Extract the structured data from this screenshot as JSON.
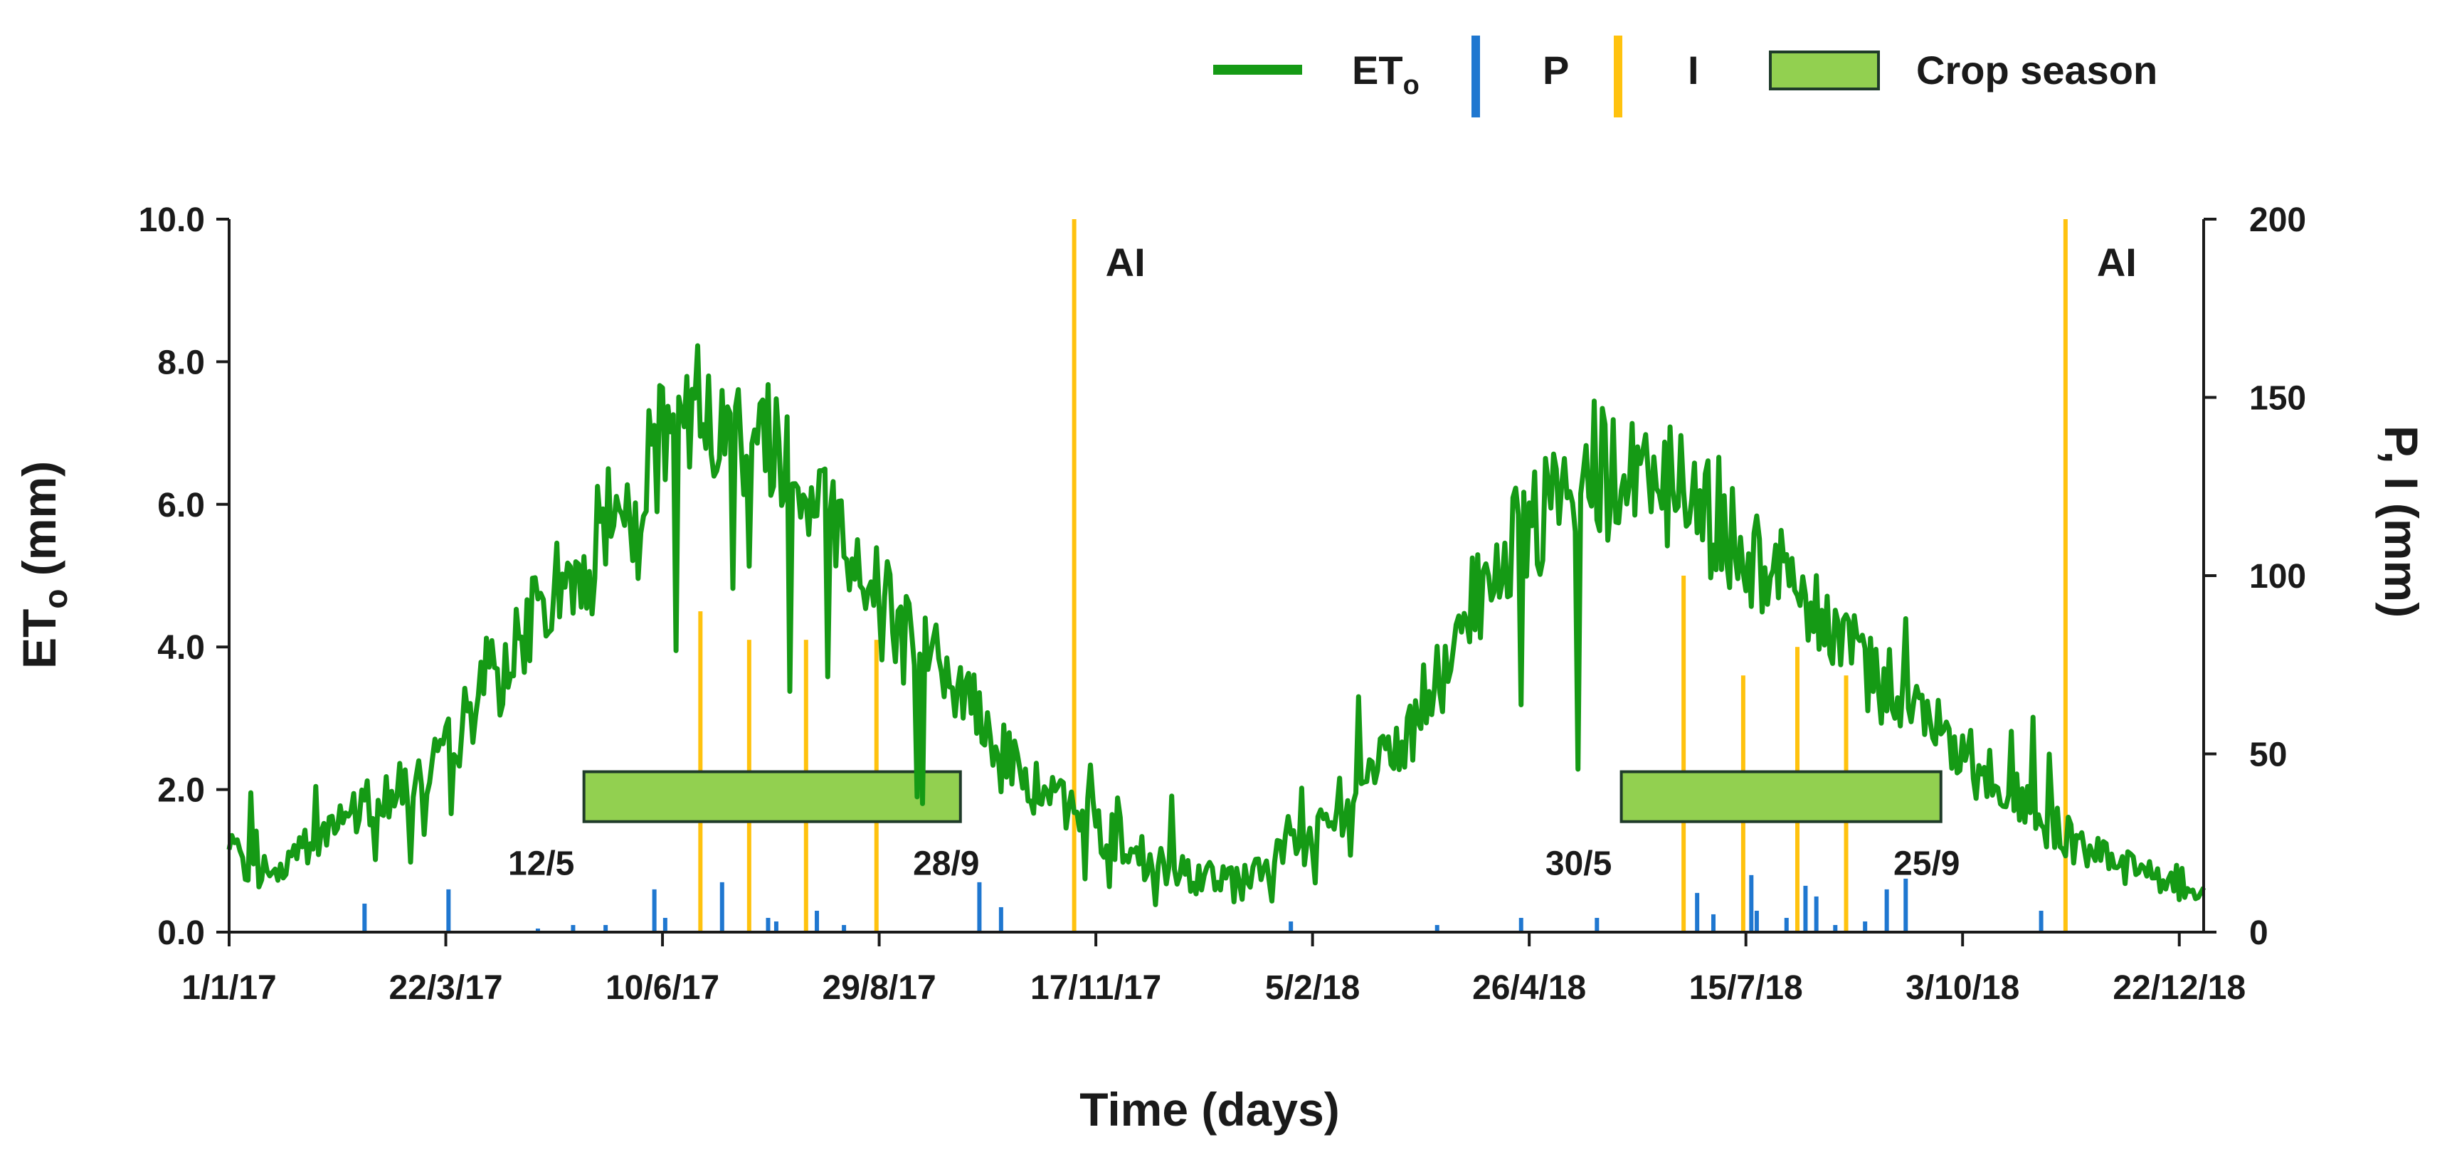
{
  "chart_data": {
    "type": "line",
    "x_axis": {
      "title": "Time (days)",
      "range": [
        "2017-01-01",
        "2018-12-31"
      ],
      "tick_labels": [
        "1/1/17",
        "22/3/17",
        "10/6/17",
        "29/8/17",
        "17/11/17",
        "5/2/18",
        "26/4/18",
        "15/7/18",
        "3/10/18",
        "22/12/18"
      ],
      "tick_dates": [
        "2017-01-01",
        "2017-03-22",
        "2017-06-10",
        "2017-08-29",
        "2017-11-17",
        "2018-02-05",
        "2018-04-26",
        "2018-07-15",
        "2018-10-03",
        "2018-12-22"
      ]
    },
    "y_left": {
      "title": "ET",
      "title_subscript": "o",
      "title_suffix": " (mm)",
      "range": [
        0,
        10
      ],
      "tick_labels": [
        "0.0",
        "2.0",
        "4.0",
        "6.0",
        "8.0",
        "10.0"
      ]
    },
    "y_right": {
      "title": "P, I (mm)",
      "range": [
        0,
        200
      ],
      "tick_labels": [
        "0",
        "50",
        "100",
        "150",
        "200"
      ]
    },
    "legend": {
      "position": "top-right",
      "items": [
        {
          "label": "ET",
          "subscript": "o",
          "kind": "line",
          "color": "#159a15"
        },
        {
          "label": "P",
          "kind": "bar",
          "color": "#1f77d0"
        },
        {
          "label": "I",
          "kind": "bar",
          "color": "#ffc20e"
        },
        {
          "label": "Crop season",
          "kind": "box",
          "color": "#92d050"
        }
      ]
    },
    "series": [
      {
        "name": "ET",
        "axis": "left",
        "color": "#159a15",
        "points": [
          [
            "2017-01-01",
            1.1
          ],
          [
            "2017-01-11",
            0.8
          ],
          [
            "2017-01-21",
            1.0
          ],
          [
            "2017-02-01",
            1.3
          ],
          [
            "2017-02-11",
            1.5
          ],
          [
            "2017-02-21",
            1.8
          ],
          [
            "2017-03-01",
            2.0
          ],
          [
            "2017-03-11",
            2.2
          ],
          [
            "2017-03-22",
            2.5
          ],
          [
            "2017-04-01",
            3.2
          ],
          [
            "2017-04-11",
            3.6
          ],
          [
            "2017-04-21",
            4.2
          ],
          [
            "2017-05-01",
            4.8
          ],
          [
            "2017-05-11",
            5.1
          ],
          [
            "2017-05-21",
            5.8
          ],
          [
            "2017-06-01",
            6.3
          ],
          [
            "2017-06-10",
            6.9
          ],
          [
            "2017-06-21",
            7.2
          ],
          [
            "2017-07-01",
            7.0
          ],
          [
            "2017-07-11",
            7.1
          ],
          [
            "2017-07-21",
            7.0
          ],
          [
            "2017-08-01",
            6.3
          ],
          [
            "2017-08-11",
            5.7
          ],
          [
            "2017-08-21",
            5.2
          ],
          [
            "2017-09-01",
            4.6
          ],
          [
            "2017-09-11",
            4.0
          ],
          [
            "2017-09-21",
            3.7
          ],
          [
            "2017-10-01",
            3.2
          ],
          [
            "2017-10-11",
            2.7
          ],
          [
            "2017-10-21",
            2.2
          ],
          [
            "2017-11-01",
            1.9
          ],
          [
            "2017-11-11",
            1.6
          ],
          [
            "2017-11-21",
            1.4
          ],
          [
            "2017-12-01",
            1.2
          ],
          [
            "2017-12-11",
            0.9
          ],
          [
            "2017-12-21",
            0.8
          ],
          [
            "2018-01-01",
            0.8
          ],
          [
            "2018-01-11",
            0.7
          ],
          [
            "2018-01-21",
            1.0
          ],
          [
            "2018-02-01",
            1.2
          ],
          [
            "2018-02-11",
            1.5
          ],
          [
            "2018-02-21",
            1.8
          ],
          [
            "2018-03-01",
            2.3
          ],
          [
            "2018-03-11",
            2.7
          ],
          [
            "2018-03-21",
            3.3
          ],
          [
            "2018-04-01",
            4.3
          ],
          [
            "2018-04-11",
            5.0
          ],
          [
            "2018-04-21",
            5.5
          ],
          [
            "2018-05-01",
            5.8
          ],
          [
            "2018-05-11",
            6.1
          ],
          [
            "2018-05-21",
            6.3
          ],
          [
            "2018-06-01",
            6.4
          ],
          [
            "2018-06-11",
            6.3
          ],
          [
            "2018-06-21",
            6.2
          ],
          [
            "2018-07-01",
            5.8
          ],
          [
            "2018-07-11",
            5.5
          ],
          [
            "2018-07-21",
            5.2
          ],
          [
            "2018-08-01",
            4.9
          ],
          [
            "2018-08-11",
            4.5
          ],
          [
            "2018-08-21",
            4.1
          ],
          [
            "2018-09-01",
            3.7
          ],
          [
            "2018-09-11",
            3.3
          ],
          [
            "2018-09-21",
            3.0
          ],
          [
            "2018-10-01",
            2.6
          ],
          [
            "2018-10-11",
            2.2
          ],
          [
            "2018-10-21",
            1.9
          ],
          [
            "2018-11-01",
            1.6
          ],
          [
            "2018-11-11",
            1.3
          ],
          [
            "2018-11-21",
            1.1
          ],
          [
            "2018-12-01",
            0.9
          ],
          [
            "2018-12-11",
            0.8
          ],
          [
            "2018-12-21",
            0.7
          ],
          [
            "2018-12-31",
            0.7
          ]
        ]
      },
      {
        "name": "P",
        "axis": "right",
        "type": "bar",
        "color": "#1f77d0",
        "points": [
          [
            "2017-02-20",
            8
          ],
          [
            "2017-03-23",
            12
          ],
          [
            "2017-04-25",
            1
          ],
          [
            "2017-05-08",
            2
          ],
          [
            "2017-05-20",
            2
          ],
          [
            "2017-06-07",
            12
          ],
          [
            "2017-06-11",
            4
          ],
          [
            "2017-07-02",
            14
          ],
          [
            "2017-07-19",
            4
          ],
          [
            "2017-07-22",
            3
          ],
          [
            "2017-08-06",
            6
          ],
          [
            "2017-08-16",
            2
          ],
          [
            "2017-10-05",
            14
          ],
          [
            "2017-10-13",
            7
          ],
          [
            "2018-01-28",
            3
          ],
          [
            "2018-03-23",
            2
          ],
          [
            "2018-04-23",
            4
          ],
          [
            "2018-05-21",
            4
          ],
          [
            "2018-06-27",
            11
          ],
          [
            "2018-07-03",
            5
          ],
          [
            "2018-07-17",
            16
          ],
          [
            "2018-07-19",
            6
          ],
          [
            "2018-07-30",
            4
          ],
          [
            "2018-08-06",
            13
          ],
          [
            "2018-08-10",
            10
          ],
          [
            "2018-08-17",
            2
          ],
          [
            "2018-08-28",
            3
          ],
          [
            "2018-09-05",
            12
          ],
          [
            "2018-09-12",
            15
          ],
          [
            "2018-11-01",
            6
          ]
        ]
      },
      {
        "name": "I",
        "axis": "right",
        "type": "bar",
        "color": "#ffc20e",
        "points": [
          [
            "2017-06-24",
            90
          ],
          [
            "2017-07-12",
            82
          ],
          [
            "2017-08-02",
            82
          ],
          [
            "2017-08-28",
            82
          ],
          [
            "2017-11-09",
            200
          ],
          [
            "2018-06-22",
            100
          ],
          [
            "2018-07-14",
            72
          ],
          [
            "2018-08-03",
            80
          ],
          [
            "2018-08-21",
            72
          ],
          [
            "2018-11-10",
            200
          ]
        ]
      }
    ],
    "crop_seasons": [
      {
        "start": "2017-05-12",
        "end": "2017-09-28",
        "start_label": "12/5",
        "end_label": "28/9",
        "height": [
          1.55,
          2.25
        ]
      },
      {
        "start": "2018-05-30",
        "end": "2018-09-25",
        "start_label": "30/5",
        "end_label": "25/9",
        "height": [
          1.55,
          2.25
        ]
      }
    ],
    "annotations": [
      {
        "text": "AI",
        "date": "2017-11-09"
      },
      {
        "text": "AI",
        "date": "2018-11-10"
      }
    ],
    "grid": false
  }
}
